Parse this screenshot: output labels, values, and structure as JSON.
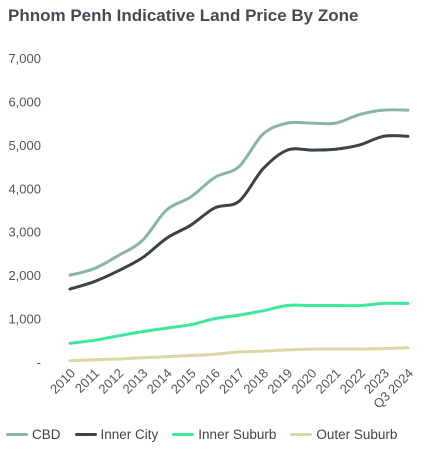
{
  "title": "Phnom Penh Indicative Land Price By Zone",
  "colors": {
    "cbd": "#88b5a6",
    "inner_city": "#3b4348",
    "inner_suburb": "#3de899",
    "outer_suburb": "#ddd7a5"
  },
  "chart_data": {
    "type": "line",
    "title": "Phnom Penh Indicative Land Price By Zone",
    "xlabel": "",
    "ylabel": "",
    "x": [
      "2010",
      "2011",
      "2012",
      "2013",
      "2014",
      "2015",
      "2016",
      "2017",
      "2018",
      "2019",
      "2020",
      "2021",
      "2022",
      "2023",
      "Q3 2024"
    ],
    "ylim": [
      0,
      7000
    ],
    "yticks": [
      "-",
      "1,000",
      "2,000",
      "3,000",
      "4,000",
      "5,000",
      "6,000",
      "7,000"
    ],
    "grid": false,
    "legend_position": "bottom",
    "series": [
      {
        "name": "CBD",
        "values": [
          2000,
          2150,
          2450,
          2800,
          3500,
          3800,
          4250,
          4500,
          5250,
          5500,
          5500,
          5500,
          5700,
          5800,
          5800
        ]
      },
      {
        "name": "Inner City",
        "values": [
          1680,
          1850,
          2100,
          2400,
          2850,
          3150,
          3550,
          3700,
          4450,
          4880,
          4880,
          4900,
          5000,
          5200,
          5200
        ]
      },
      {
        "name": "Inner Suburb",
        "values": [
          430,
          500,
          600,
          700,
          780,
          860,
          1000,
          1080,
          1180,
          1300,
          1300,
          1300,
          1300,
          1350,
          1350
        ]
      },
      {
        "name": "Outer Suburb",
        "values": [
          30,
          50,
          70,
          100,
          120,
          150,
          180,
          230,
          250,
          280,
          300,
          300,
          300,
          310,
          330
        ]
      }
    ]
  },
  "legend": {
    "items": [
      "CBD",
      "Inner City",
      "Inner Suburb",
      "Outer Suburb"
    ]
  }
}
